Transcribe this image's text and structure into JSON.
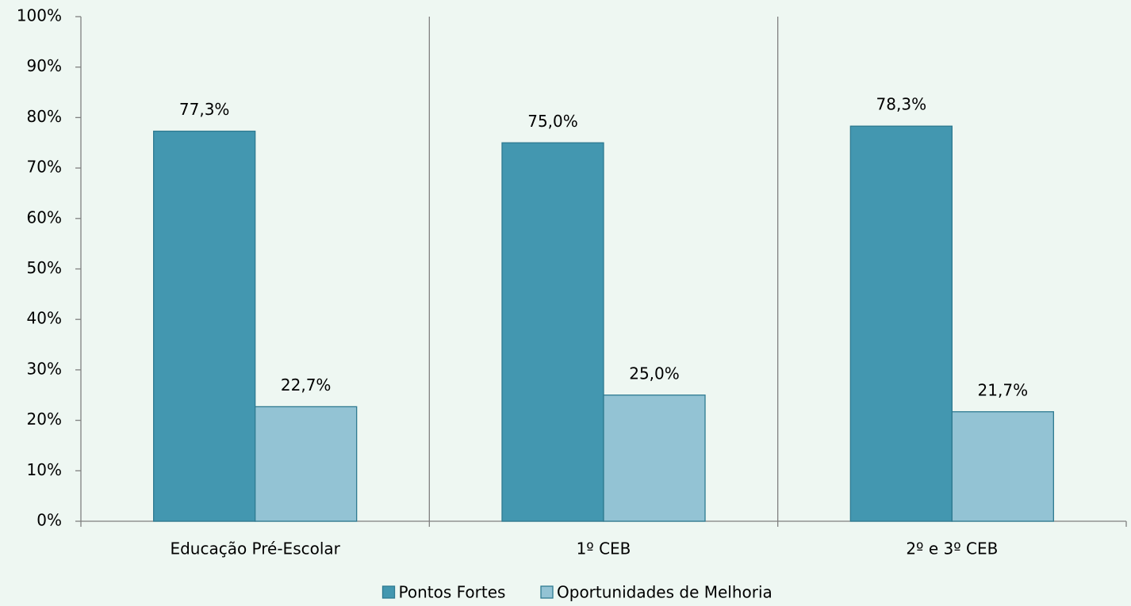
{
  "chart_data": {
    "type": "bar",
    "categories": [
      "Educação Pré-Escolar",
      "1º CEB",
      "2º e 3º CEB"
    ],
    "series": [
      {
        "name": "Pontos Fortes",
        "color": "#4397b0",
        "values": [
          77.3,
          75.0,
          78.3
        ],
        "value_labels": [
          "77,3%",
          "75,0%",
          "78,3%"
        ]
      },
      {
        "name": "Oportunidades de Melhoria",
        "color": "#93c3d4",
        "values": [
          22.7,
          25.0,
          21.7
        ],
        "value_labels": [
          "22,7%",
          "25,0%",
          "21,7%"
        ]
      }
    ],
    "ylim": [
      0,
      100
    ],
    "yticks": [
      {
        "value": 0,
        "label": "0%"
      },
      {
        "value": 10,
        "label": "10%"
      },
      {
        "value": 20,
        "label": "20%"
      },
      {
        "value": 30,
        "label": "30%"
      },
      {
        "value": 40,
        "label": "40%"
      },
      {
        "value": 50,
        "label": "50%"
      },
      {
        "value": 60,
        "label": "60%"
      },
      {
        "value": 70,
        "label": "70%"
      },
      {
        "value": 80,
        "label": "80%"
      },
      {
        "value": 90,
        "label": "90%"
      },
      {
        "value": 100,
        "label": "100%"
      }
    ],
    "legend": "bottom"
  }
}
